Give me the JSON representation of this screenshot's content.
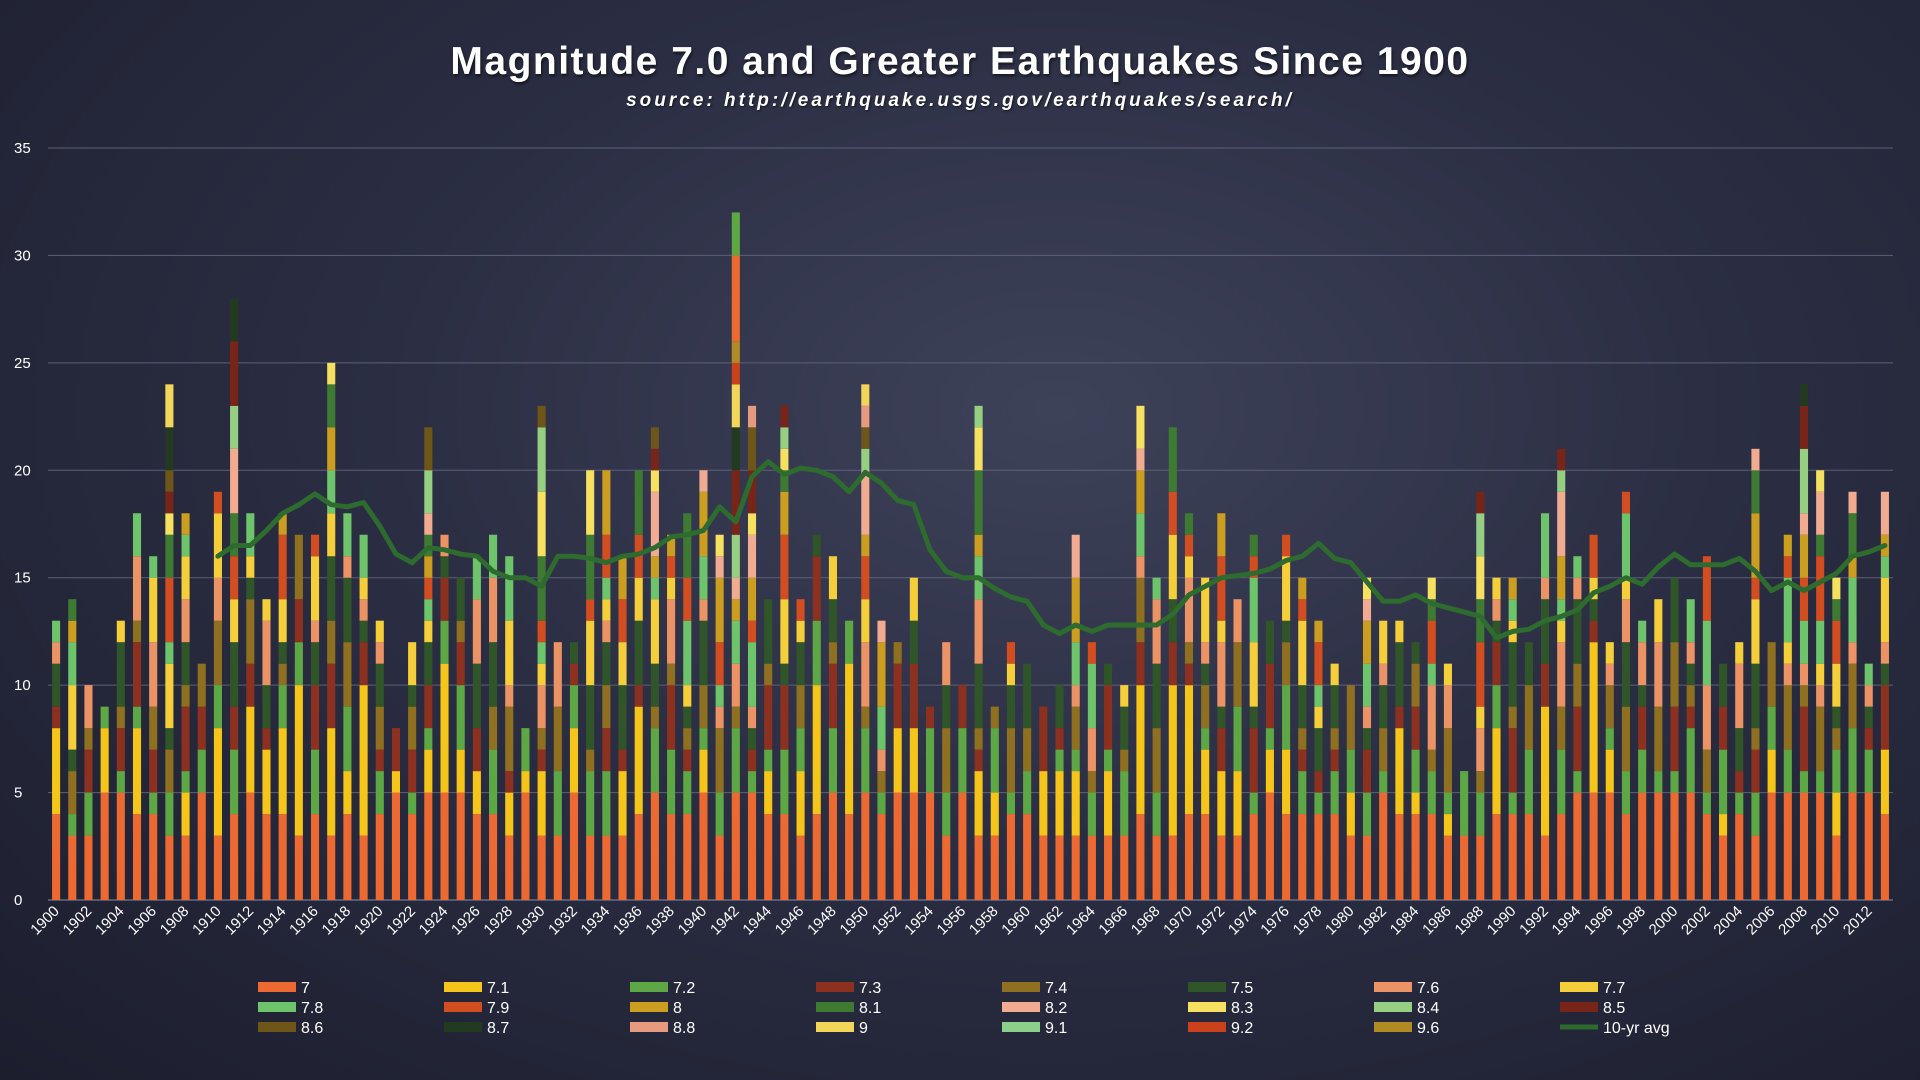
{
  "chart_data": {
    "type": "bar",
    "stacked": true,
    "title": "Magnitude 7.0 and Greater Earthquakes Since 1900",
    "subtitle": "source: http://earthquake.usgs.gov/earthquakes/search/",
    "xlabel": "",
    "ylabel": "",
    "ylim": [
      0,
      35
    ],
    "yticks": [
      0,
      5,
      10,
      15,
      20,
      25,
      30,
      35
    ],
    "grid": true,
    "legend_position": "bottom",
    "x_start": 1900,
    "x_end": 2013,
    "x_tick_labels": [
      "1900",
      "1902",
      "1904",
      "1906",
      "1908",
      "1910",
      "1912",
      "1914",
      "1916",
      "1918",
      "1920",
      "1922",
      "1924",
      "1926",
      "1928",
      "1930",
      "1932",
      "1934",
      "1936",
      "1938",
      "1940",
      "1942",
      "1944",
      "1946",
      "1948",
      "1950",
      "1952",
      "1954",
      "1956",
      "1958",
      "1960",
      "1962",
      "1964",
      "1966",
      "1968",
      "1970",
      "1972",
      "1974",
      "1976",
      "1978",
      "1980",
      "1982",
      "1984",
      "1986",
      "1988",
      "1990",
      "1992",
      "1994",
      "1996",
      "1998",
      "2000",
      "2002",
      "2004",
      "2006",
      "2008",
      "2010",
      "2012"
    ],
    "totals": [
      13,
      14,
      10,
      9,
      13,
      18,
      16,
      24,
      18,
      11,
      19,
      28,
      18,
      14,
      18,
      17,
      17,
      25,
      18,
      17,
      13,
      8,
      12,
      22,
      17,
      15,
      16,
      17,
      16,
      8,
      23,
      12,
      12,
      20,
      20,
      16,
      20,
      22,
      17,
      18,
      20,
      17,
      32,
      23,
      14,
      23,
      14,
      17,
      16,
      13,
      24,
      13,
      12,
      15,
      9,
      12,
      10,
      23,
      9,
      12,
      11,
      9,
      10,
      17,
      12,
      11,
      10,
      23,
      15,
      22,
      18,
      15,
      18,
      14,
      17,
      13,
      17,
      15,
      13,
      11,
      10,
      15,
      13,
      13,
      12,
      15,
      11,
      6,
      19,
      15,
      15,
      12,
      18,
      21,
      16,
      17,
      12,
      19,
      13,
      14,
      15,
      14,
      16,
      11,
      12,
      21,
      12,
      17,
      24,
      20,
      15,
      19,
      11,
      19
    ],
    "categories": [
      "7",
      "7.1",
      "7.2",
      "7.3",
      "7.4",
      "7.5",
      "7.6",
      "7.7",
      "7.8",
      "7.9",
      "8",
      "8.1",
      "8.2",
      "8.3",
      "8.4",
      "8.5",
      "8.6",
      "8.7",
      "8.8",
      "9",
      "9.1",
      "9.2",
      "9.6"
    ],
    "colors": [
      "#ec6a31",
      "#f5c51a",
      "#5da845",
      "#8c3020",
      "#8f7020",
      "#2f5528",
      "#ec9365",
      "#f5cf3a",
      "#6ec46b",
      "#d24d1f",
      "#cc9e20",
      "#3f7a33",
      "#f0ab90",
      "#f5e060",
      "#96cf82",
      "#782418",
      "#6e5518",
      "#223a20",
      "#e89a7e",
      "#f2d65a",
      "#8ccf8a",
      "#c9421c",
      "#b08a25"
    ],
    "legend_items": [
      "7",
      "7.1",
      "7.2",
      "7.3",
      "7.4",
      "7.5",
      "7.6",
      "7.7",
      "7.8",
      "7.9",
      "8",
      "8.1",
      "8.2",
      "8.3",
      "8.4",
      "8.5",
      "8.6",
      "8.7",
      "8.8",
      "9",
      "9.1",
      "9.2",
      "9.6",
      "10-yr avg"
    ],
    "avg_series": {
      "name": "10-yr avg",
      "color": "#2e6b2e",
      "x": [
        1910,
        1911,
        1912,
        1913,
        1914,
        1915,
        1916,
        1917,
        1918,
        1919,
        1920,
        1921,
        1922,
        1923,
        1924,
        1925,
        1926,
        1927,
        1928,
        1929,
        1930,
        1931,
        1932,
        1933,
        1934,
        1935,
        1936,
        1937,
        1938,
        1939,
        1940,
        1941,
        1942,
        1943,
        1944,
        1945,
        1946,
        1947,
        1948,
        1949,
        1950,
        1951,
        1952,
        1953,
        1954,
        1955,
        1956,
        1957,
        1958,
        1959,
        1960,
        1961,
        1962,
        1963,
        1964,
        1965,
        1966,
        1967,
        1968,
        1969,
        1970,
        1971,
        1972,
        1973,
        1974,
        1975,
        1976,
        1977,
        1978,
        1979,
        1980,
        1981,
        1982,
        1983,
        1984,
        1985,
        1986,
        1987,
        1988,
        1989,
        1990,
        1991,
        1992,
        1993,
        1994,
        1995,
        1996,
        1997,
        1998,
        1999,
        2000,
        2001,
        2002,
        2003,
        2004,
        2005,
        2006,
        2007,
        2008,
        2009,
        2010,
        2011,
        2012,
        2013
      ],
      "values": [
        16.0,
        16.5,
        16.5,
        17.2,
        18.0,
        18.4,
        18.9,
        18.4,
        18.3,
        18.5,
        17.4,
        16.1,
        15.7,
        16.4,
        16.3,
        16.1,
        16.0,
        15.3,
        15.0,
        15.0,
        14.6,
        16.0,
        16.0,
        15.9,
        15.7,
        16.0,
        16.1,
        16.4,
        16.9,
        17.0,
        17.2,
        18.3,
        17.6,
        19.7,
        20.4,
        19.8,
        20.1,
        20.0,
        19.7,
        19.0,
        19.9,
        19.4,
        18.6,
        18.4,
        16.3,
        15.3,
        15.0,
        15.0,
        14.5,
        14.1,
        13.9,
        12.8,
        12.4,
        12.8,
        12.5,
        12.8,
        12.8,
        12.8,
        12.8,
        13.3,
        14.2,
        14.6,
        15.0,
        15.1,
        15.2,
        15.4,
        15.8,
        16.0,
        16.6,
        15.9,
        15.7,
        14.8,
        13.9,
        13.9,
        14.2,
        13.8,
        13.6,
        13.4,
        13.2,
        12.2,
        12.5,
        12.6,
        13.0,
        13.2,
        13.5,
        14.3,
        14.6,
        15.0,
        14.7,
        15.5,
        16.1,
        15.6,
        15.6,
        15.6,
        15.9,
        15.3,
        14.4,
        14.8,
        14.4,
        14.8,
        15.2,
        16.0,
        16.2,
        16.5
      ]
    }
  }
}
